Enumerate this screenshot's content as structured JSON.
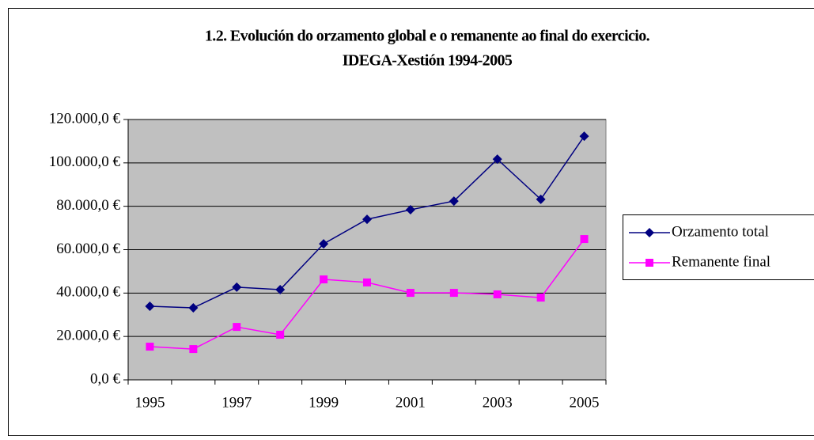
{
  "chart_data": {
    "type": "line",
    "title": [
      "1.2. Evolución do orzamento global e o remanente ao final do exercicio.",
      "IDEGA-Xestión 1994-2005"
    ],
    "categories": [
      "1995",
      null,
      "1997",
      null,
      "1999",
      null,
      "2001",
      null,
      "2003",
      null,
      "2005"
    ],
    "series": [
      {
        "name": "Orzamento total",
        "color": "#000080",
        "marker": "diamond",
        "values": [
          33900,
          33200,
          42700,
          41600,
          62700,
          74000,
          78400,
          82400,
          101700,
          83200,
          112300
        ]
      },
      {
        "name": "Remanente final",
        "color": "#ff00ff",
        "marker": "square",
        "values": [
          15300,
          14200,
          24400,
          20800,
          46300,
          44900,
          40100,
          40100,
          39400,
          37900,
          64900
        ]
      }
    ],
    "ylim": [
      0,
      120000
    ],
    "yticks": [
      {
        "value": 0,
        "label": "0,0 €"
      },
      {
        "value": 20000,
        "label": "20.000,0 €"
      },
      {
        "value": 40000,
        "label": "40.000,0 €"
      },
      {
        "value": 60000,
        "label": "60.000,0 €"
      },
      {
        "value": 80000,
        "label": "80.000,0 €"
      },
      {
        "value": 100000,
        "label": "100.000,0 €"
      },
      {
        "value": 120000,
        "label": "120.000,0 €"
      }
    ],
    "grid": true,
    "legend": "right",
    "plot_background": "#c0c0c0"
  }
}
